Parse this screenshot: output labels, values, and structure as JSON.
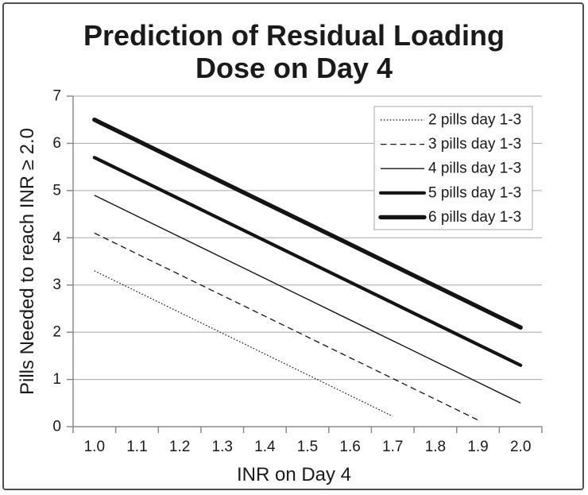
{
  "chart_data": {
    "type": "line",
    "title": "Prediction of Residual Loading Dose on Day 4",
    "title_lines": [
      "Prediction of Residual Loading",
      "Dose on Day 4"
    ],
    "xlabel": "INR on Day 4",
    "ylabel": "Pills Needed to reach INR ≥ 2.0",
    "categories": [
      "1.0",
      "1.1",
      "1.2",
      "1.3",
      "1.4",
      "1.5",
      "1.6",
      "1.7",
      "1.8",
      "1.9",
      "2.0"
    ],
    "ylim": [
      0,
      7
    ],
    "yticks": [
      0,
      1,
      2,
      3,
      4,
      5,
      6,
      7
    ],
    "grid": "horizontal-only",
    "legend_position": "top-right",
    "series": [
      {
        "name": "2 pills day 1-3",
        "style": "dotted",
        "width": 1.2,
        "values": [
          3.3,
          2.86,
          2.42,
          1.98,
          1.54,
          1.1,
          0.66,
          0.22
        ]
      },
      {
        "name": "3 pills day 1-3",
        "style": "dashed",
        "width": 1.3,
        "values": [
          4.1,
          3.66,
          3.22,
          2.78,
          2.34,
          1.9,
          1.46,
          1.02,
          0.58,
          0.14
        ]
      },
      {
        "name": "4 pills day 1-3",
        "style": "solid",
        "width": 1.4,
        "values": [
          4.9,
          4.46,
          4.02,
          3.58,
          3.14,
          2.7,
          2.26,
          1.82,
          1.38,
          0.94,
          0.5
        ]
      },
      {
        "name": "5 pills day 1-3",
        "style": "solid",
        "width": 4.2,
        "values": [
          5.7,
          5.26,
          4.82,
          4.38,
          3.94,
          3.5,
          3.06,
          2.62,
          2.18,
          1.74,
          1.3
        ]
      },
      {
        "name": "6 pills day 1-3",
        "style": "solid",
        "width": 5.4,
        "values": [
          6.5,
          6.06,
          5.62,
          5.18,
          4.74,
          4.3,
          3.86,
          3.42,
          2.98,
          2.54,
          2.1
        ]
      }
    ],
    "colors": {
      "text": "#1a1a1a",
      "line": "#141414",
      "gridline": "#a8a8a8",
      "axis": "#8a8a8a",
      "legend_border": "#b3b3b3",
      "frame_border": "#4f4f4f",
      "background": "#ffffff"
    }
  }
}
